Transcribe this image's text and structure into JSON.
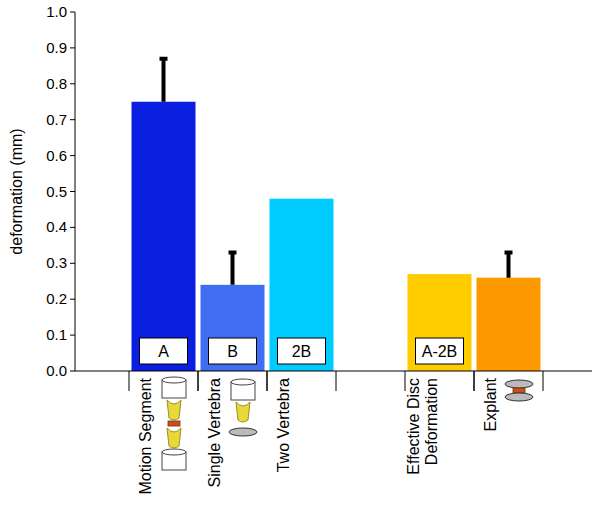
{
  "chart_data": {
    "type": "bar",
    "y_label": "deformation (mm)",
    "categories": [
      "Motion Segment",
      "Single Vertebra",
      "Two Vertebra",
      null,
      "Effective Disc Deformation",
      "Explant"
    ],
    "values": [
      0.75,
      0.24,
      0.48,
      null,
      0.27,
      0.26
    ],
    "errors": [
      0.12,
      0.09,
      null,
      null,
      null,
      0.07
    ],
    "annotations": [
      "A",
      "B",
      "2B",
      null,
      "A-2B",
      null
    ],
    "colors": [
      "#0a1fe0",
      "#3f6ef2",
      "#00ccff",
      null,
      "#ffcc00",
      "#ff9900"
    ],
    "ylim": [
      0,
      1
    ],
    "yticks": [
      {
        "value": 0,
        "label": "0.0"
      },
      {
        "value": 0.1,
        "label": "0.1"
      },
      {
        "value": 0.2,
        "label": "0.2"
      },
      {
        "value": 0.3,
        "label": "0.3"
      },
      {
        "value": 0.4,
        "label": "0.4"
      },
      {
        "value": 0.5,
        "label": "0.5"
      },
      {
        "value": 0.6,
        "label": "0.6"
      },
      {
        "value": 0.7,
        "label": "0.7"
      },
      {
        "value": 0.8,
        "label": "0.8"
      },
      {
        "value": 0.9,
        "label": "0.9"
      },
      {
        "value": 1,
        "label": "1.0"
      }
    ],
    "grid": false
  }
}
